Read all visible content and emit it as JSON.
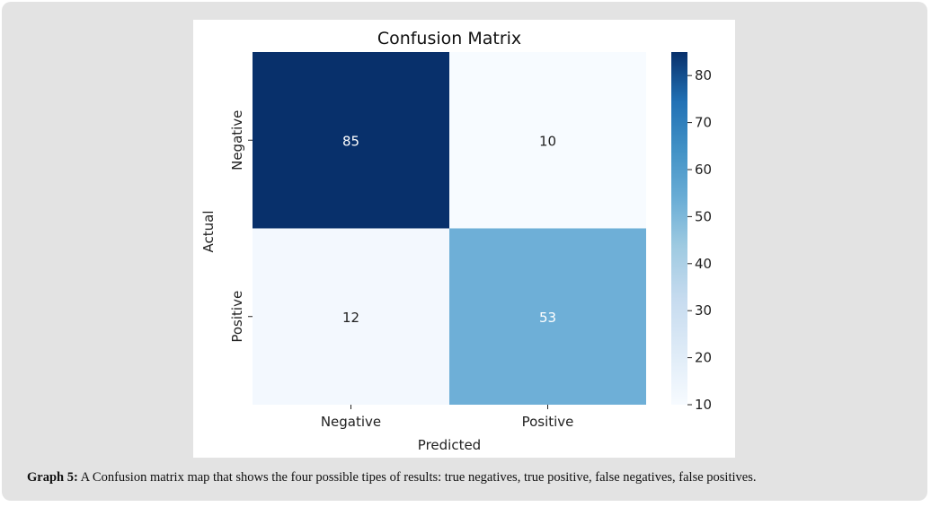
{
  "chart_data": {
    "type": "heatmap",
    "title": "Confusion Matrix",
    "xlabel": "Predicted",
    "ylabel": "Actual",
    "x_categories": [
      "Negative",
      "Positive"
    ],
    "y_categories": [
      "Negative",
      "Positive"
    ],
    "values": [
      [
        85,
        10
      ],
      [
        12,
        53
      ]
    ],
    "colormap": "Blues",
    "colorbar": {
      "range": [
        10,
        85
      ],
      "ticks": [
        10,
        20,
        30,
        40,
        50,
        60,
        70,
        80
      ]
    },
    "colors": {
      "low": "#f7fbff",
      "high": "#08306b"
    }
  },
  "caption": {
    "label": "Graph 5:",
    "text": " A Confusion matrix map that shows the four possible tipes of results: true negatives, true positive, false negatives, false positives."
  }
}
